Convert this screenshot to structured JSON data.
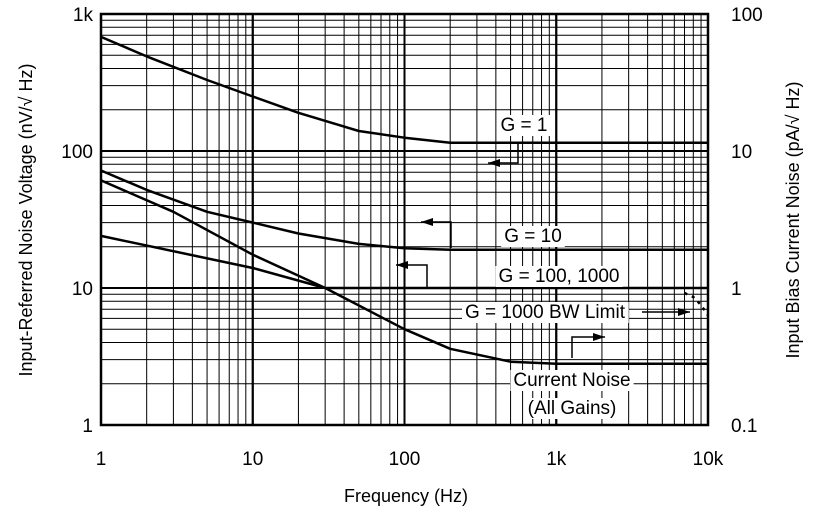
{
  "chart_data": {
    "type": "line",
    "x_scale": "log",
    "y_scale": "log",
    "xlabel": "Frequency (Hz)",
    "ylabel": "Input-Referred Noise Voltage (nV/√ Hz)",
    "ylabel2": "Input Bias Current Noise (pA/√ Hz)",
    "xlim": [
      1,
      10000
    ],
    "ylim": [
      1,
      1000
    ],
    "ylim2": [
      0.1,
      100
    ],
    "grid": true,
    "x_ticks": [
      {
        "value": 1,
        "label": "1"
      },
      {
        "value": 10,
        "label": "10"
      },
      {
        "value": 100,
        "label": "100"
      },
      {
        "value": 1000,
        "label": "1k"
      },
      {
        "value": 10000,
        "label": "10k"
      }
    ],
    "y_ticks": [
      {
        "value": 1,
        "label": "1"
      },
      {
        "value": 10,
        "label": "10"
      },
      {
        "value": 100,
        "label": "100"
      },
      {
        "value": 1000,
        "label": "1k"
      }
    ],
    "y2_ticks": [
      {
        "value": 0.1,
        "label": "0.1"
      },
      {
        "value": 1,
        "label": "1"
      },
      {
        "value": 10,
        "label": "10"
      },
      {
        "value": 100,
        "label": "100"
      }
    ],
    "series": [
      {
        "name": "G = 1",
        "axis": "left",
        "x": [
          1,
          2,
          5,
          10,
          20,
          50,
          100,
          200,
          500,
          1000,
          10000
        ],
        "y": [
          680,
          490,
          330,
          250,
          190,
          140,
          125,
          115,
          115,
          115,
          115
        ]
      },
      {
        "name": "G = 10",
        "axis": "left",
        "x": [
          1,
          2,
          5,
          10,
          20,
          50,
          100,
          200,
          500,
          1000,
          10000
        ],
        "y": [
          72,
          52,
          36,
          30,
          25,
          21,
          19.5,
          19,
          19,
          19,
          19
        ]
      },
      {
        "name": "G = 100, 1000",
        "axis": "left",
        "x": [
          1,
          10,
          30,
          100,
          1000,
          10000
        ],
        "y": [
          24,
          14,
          10,
          10,
          10,
          10
        ]
      },
      {
        "name": "G = 1000 BW Limit",
        "axis": "left",
        "x": [
          7000,
          8000,
          9000,
          10000
        ],
        "y": [
          9.2,
          8.6,
          7.5,
          6.3
        ]
      },
      {
        "name": "Current Noise (All Gains)",
        "axis": "right",
        "x": [
          1,
          3,
          10,
          30,
          100,
          200,
          500,
          1000,
          10000
        ],
        "y": [
          6.1,
          3.6,
          1.75,
          1.0,
          0.5,
          0.36,
          0.29,
          0.28,
          0.28
        ]
      }
    ],
    "annotations": [
      {
        "text": "G = 1"
      },
      {
        "text": "G = 10"
      },
      {
        "text": "G = 100, 1000"
      },
      {
        "text": "G = 1000 BW Limit"
      },
      {
        "text": "Current Noise"
      },
      {
        "text": "(All Gains)"
      }
    ]
  }
}
